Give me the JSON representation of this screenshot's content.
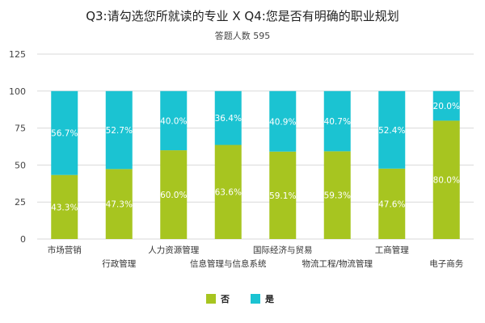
{
  "chart_data": {
    "type": "bar",
    "stacked": true,
    "title": "Q3:请勾选您所就读的专业 X Q4:您是否有明确的职业规划",
    "subtitle": "答题人数 595",
    "categories": [
      "市场营销",
      "行政管理",
      "人力资源管理",
      "信息管理与信息系统",
      "国际经济与贸易",
      "物流工程/物流管理",
      "工商管理",
      "电子商务"
    ],
    "series": [
      {
        "name": "否",
        "color": "#a7c520",
        "values": [
          43.3,
          47.3,
          60.0,
          63.6,
          59.1,
          59.3,
          47.6,
          80.0
        ],
        "labels": [
          "43.3%",
          "47.3%",
          "60.0%",
          "63.6%",
          "59.1%",
          "59.3%",
          "47.6%",
          "80.0%"
        ]
      },
      {
        "name": "是",
        "color": "#1bc3d2",
        "values": [
          56.7,
          52.7,
          40.0,
          36.4,
          40.9,
          40.7,
          52.4,
          20.0
        ],
        "labels": [
          "56.7%",
          "52.7%",
          "40.0%",
          "36.4%",
          "40.9%",
          "40.7%",
          "52.4%",
          "20.0%"
        ]
      }
    ],
    "yticks": [
      "0",
      "25",
      "50",
      "75",
      "100",
      "125"
    ],
    "ylim": [
      0,
      125
    ],
    "grid": true,
    "legend_position": "bottom"
  }
}
